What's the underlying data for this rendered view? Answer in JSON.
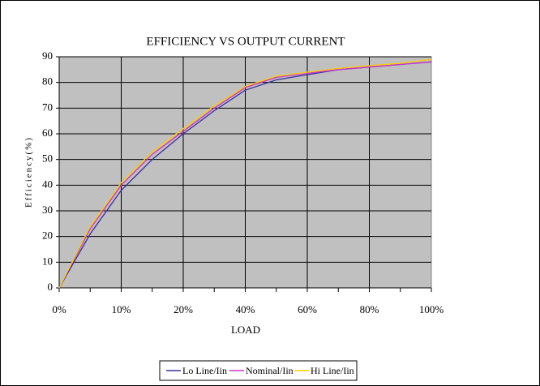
{
  "chart_data": {
    "type": "line",
    "title": "EFFICIENCY VS OUTPUT CURRENT",
    "x_label": "LOAD",
    "y_label": "Efficiency(%)",
    "categories": [
      "0%",
      null,
      "10%",
      null,
      "20%",
      null,
      "40%",
      null,
      "60%",
      null,
      "80%",
      null,
      "100%"
    ],
    "series": [
      {
        "name": "Lo Line/Iin",
        "color": "#333399",
        "values": [
          0,
          21,
          38,
          50,
          60,
          69,
          77,
          81,
          83,
          85,
          86,
          87,
          88
        ]
      },
      {
        "name": "Nominal/Iin",
        "color": "#cc33cc",
        "values": [
          0,
          23,
          40,
          52,
          61,
          70,
          78,
          82,
          83.5,
          85,
          86,
          87,
          88
        ]
      },
      {
        "name": "Hi Line/Iin",
        "color": "#ffcc00",
        "values": [
          0,
          24,
          41,
          53,
          62,
          71,
          78.5,
          82.5,
          84,
          85.5,
          86.5,
          87.5,
          89
        ]
      }
    ],
    "ylim": [
      0,
      90
    ],
    "yticks": [
      0,
      10,
      20,
      30,
      40,
      50,
      60,
      70,
      80,
      90
    ],
    "grid": true,
    "legend": "bottom"
  }
}
